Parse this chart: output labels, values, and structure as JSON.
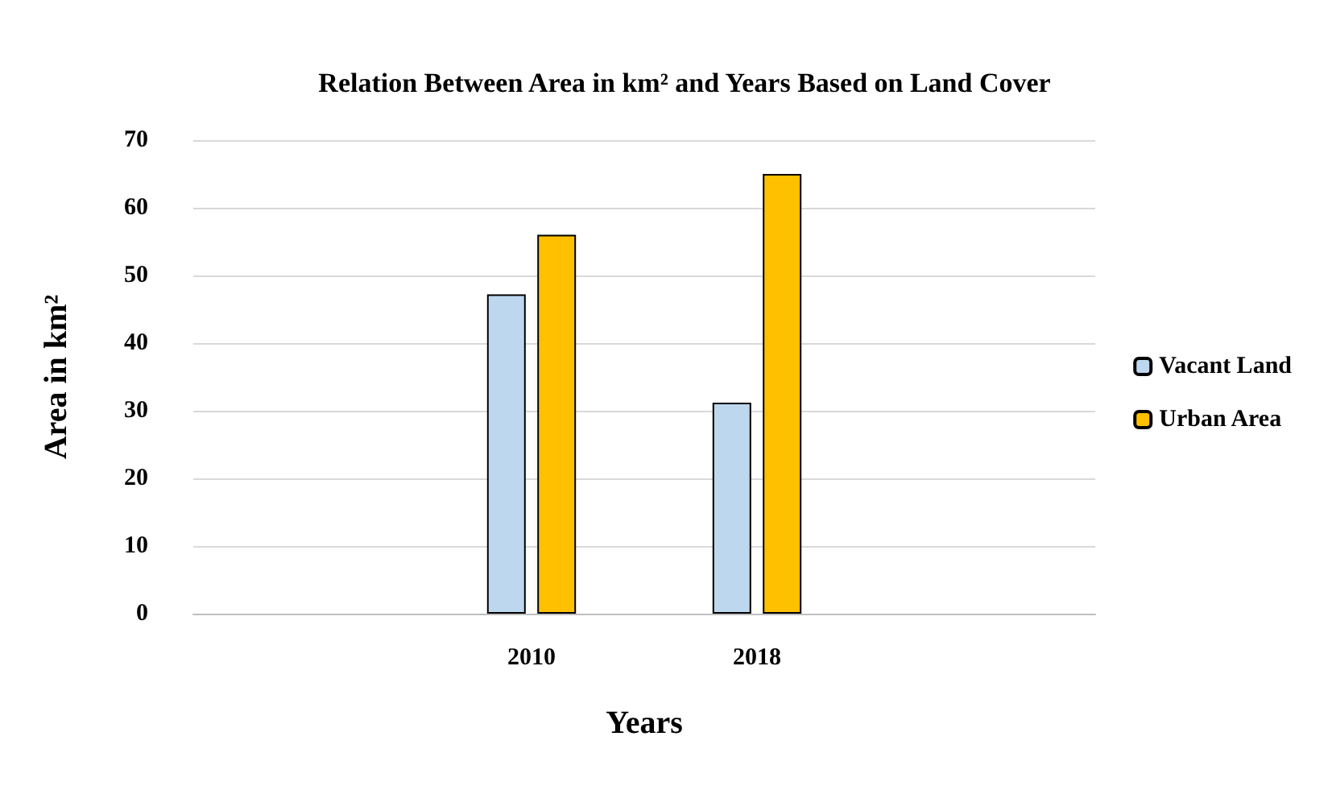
{
  "chart_data": {
    "type": "bar",
    "title": "Relation Between Area in km² and Years Based on Land Cover",
    "xlabel": "Years",
    "ylabel": "Area in km²",
    "categories": [
      null,
      "2010",
      "2018",
      null
    ],
    "series": [
      {
        "name": "Vacant Land",
        "color": "#bdd7ee",
        "values": [
          null,
          47.2,
          31.2,
          null
        ]
      },
      {
        "name": "Urban Area",
        "color": "#ffc000",
        "values": [
          null,
          56,
          65,
          null
        ]
      }
    ],
    "ylim": [
      0,
      70
    ],
    "yticks": [
      0,
      10,
      20,
      30,
      40,
      50,
      60,
      70
    ],
    "grid": "y",
    "legend": "right"
  }
}
